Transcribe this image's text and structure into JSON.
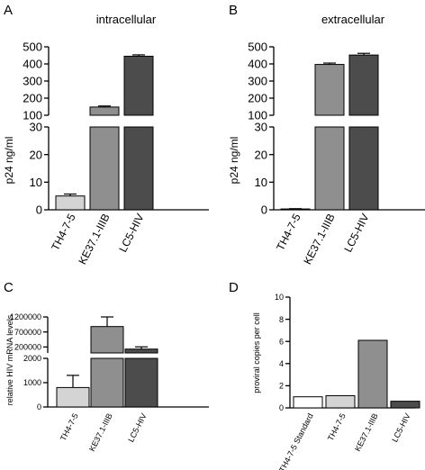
{
  "chart_data": [
    {
      "panel": "A",
      "type": "bar",
      "title": "intracellular",
      "ylabel": "p24 ng/ml",
      "categories": [
        "TH4-7-5",
        "KE37.1-IIIB",
        "LC5-HIV"
      ],
      "values": [
        5,
        148,
        445
      ],
      "errors": [
        0.7,
        6,
        8
      ],
      "colors": [
        "#d4d4d4",
        "#8f8f8f",
        "#4c4c4c"
      ],
      "axis_break": {
        "lower": [
          0,
          30
        ],
        "upper": [
          100,
          500
        ]
      },
      "yticks_lower": [
        "0",
        "10",
        "20",
        "30"
      ],
      "yticks_upper": [
        "100",
        "200",
        "300",
        "400",
        "500"
      ]
    },
    {
      "panel": "B",
      "type": "bar",
      "title": "extracellular",
      "ylabel": "p24 ng/ml",
      "categories": [
        "TH4-7-5",
        "KE37.1-IIIB",
        "LC5-HIV"
      ],
      "values": [
        0.3,
        397,
        452
      ],
      "errors": [
        0.1,
        8,
        10
      ],
      "colors": [
        "#d4d4d4",
        "#8f8f8f",
        "#4c4c4c"
      ],
      "axis_break": {
        "lower": [
          0,
          30
        ],
        "upper": [
          100,
          500
        ]
      },
      "yticks_lower": [
        "0",
        "10",
        "20",
        "30"
      ],
      "yticks_upper": [
        "100",
        "200",
        "300",
        "400",
        "500"
      ]
    },
    {
      "panel": "C",
      "type": "bar",
      "title": "",
      "ylabel": "relative HIV mRNA levels",
      "categories": [
        "TH4-7-5",
        "KE37.1-IIIB",
        "LC5-HIV"
      ],
      "values": [
        800,
        880000,
        130000
      ],
      "errors": [
        500,
        400000,
        75000
      ],
      "colors": [
        "#d4d4d4",
        "#8f8f8f",
        "#4c4c4c"
      ],
      "axis_break": {
        "lower": [
          0,
          2000
        ],
        "upper": [
          2000,
          1200000
        ]
      },
      "yticks_lower": [
        "0",
        "1000",
        "2000"
      ],
      "yticks_upper": [
        "200000",
        "700000",
        "1200000"
      ]
    },
    {
      "panel": "D",
      "type": "bar",
      "title": "",
      "ylabel": "proviral copies per cell",
      "categories": [
        "TH4-7-5 Standard",
        "TH4-7-5",
        "KE37.1-IIIB",
        "LC5-HIV"
      ],
      "values": [
        1.0,
        1.1,
        6.1,
        0.6
      ],
      "colors": [
        "#ffffff",
        "#d4d4d4",
        "#8f8f8f",
        "#4c4c4c"
      ],
      "ylim": [
        0,
        10
      ],
      "yticks": [
        "0",
        "2",
        "4",
        "6",
        "8",
        "10"
      ]
    }
  ]
}
